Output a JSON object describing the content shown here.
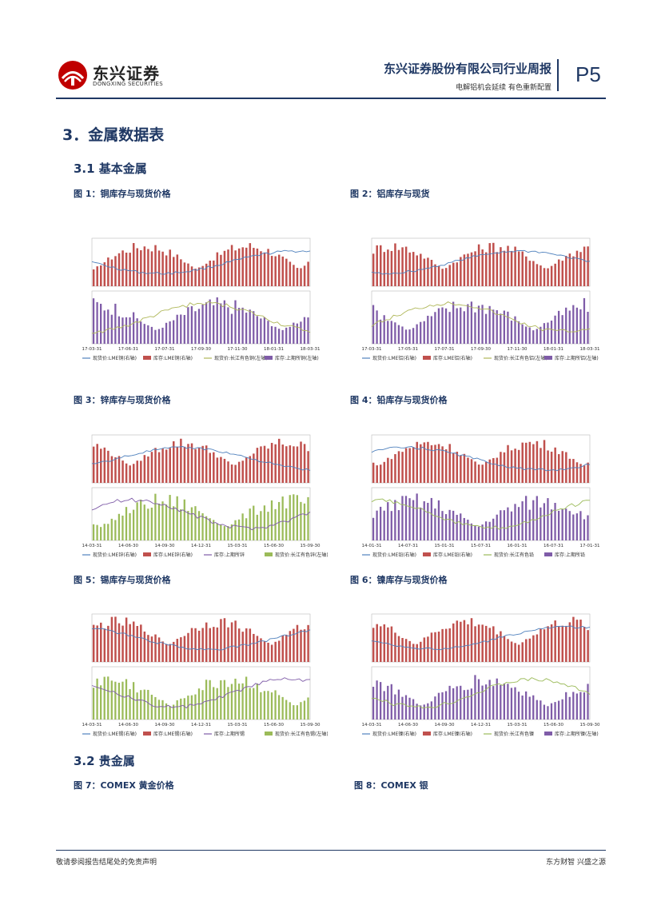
{
  "header": {
    "logo_cn": "东兴证券",
    "logo_en": "DONGXING SECURITIES",
    "report_title": "东兴证券股份有限公司行业周报",
    "report_subtitle": "电解铝机会延续 有色重新配置",
    "page": "P5"
  },
  "sections": {
    "s3": "3．金属数据表",
    "s31": "3.1  基本金属",
    "s32": "3.2  贵金属"
  },
  "figures": [
    {
      "caption": "图 1：铜库存与现货价格",
      "legend": [
        "现货价:LME铜(右轴)",
        "库存:LME铜(右轴)",
        "现货价:长江有色铜(左轴)",
        "库存:上期所铜(左轴)"
      ],
      "x_ticks": [
        "17-03-31",
        "17-06-31",
        "17-07-31",
        "17-09-30",
        "17-11-30",
        "18-01-31",
        "18-03-31"
      ]
    },
    {
      "caption": "图 2：铝库存与现货",
      "legend": [
        "现货价:LME铝(右轴)",
        "库存:LME铝(右轴)",
        "现货价:长江有色铝(左轴)",
        "库存:上期所铝(左轴)"
      ],
      "x_ticks": [
        "17-03-31",
        "17-05-31",
        "17-07-31",
        "17-09-30",
        "17-11-30",
        "18-01-31",
        "18-03-31"
      ]
    },
    {
      "caption": "图 3：锌库存与现货价格",
      "legend": [
        "现货价:LME锌(右轴)",
        "库存:LME锌(右轴)",
        "库存:上期所锌",
        "现货价:长江有色锌(左轴)"
      ],
      "x_ticks": [
        "14-03-31",
        "14-06-30",
        "14-09-30",
        "14-12-31",
        "15-03-31",
        "15-06-30",
        "15-09-30"
      ]
    },
    {
      "caption": "图 4：铅库存与现货价格",
      "legend": [
        "现货价:LME铅(右轴)",
        "库存:LME铅(右轴)",
        "现货价:长江有色铅",
        "库存:上期所铅"
      ],
      "x_ticks": [
        "14-01-31",
        "14-07-31",
        "15-01-31",
        "15-07-31",
        "16-01-31",
        "16-07-31",
        "17-01-31"
      ]
    },
    {
      "caption": "图 5：锡库存与现货价格",
      "legend": [
        "现货价:LME锡(右轴)",
        "库存:LME锡(右轴)",
        "库存:上期所锡",
        "现货价:长江有色锡(左轴)"
      ],
      "x_ticks": [
        "14-03-31",
        "14-06-30",
        "14-09-30",
        "14-12-31",
        "15-03-31",
        "15-06-30",
        "15-09-30"
      ]
    },
    {
      "caption": "图 6：镍库存与现货价格",
      "legend": [
        "现货价:LME镍(右轴)",
        "库存:LME镍(右轴)",
        "现货价:长江有色镍",
        "库存:上期所镍(左轴)"
      ],
      "x_ticks": [
        "14-03-31",
        "14-06-30",
        "14-09-30",
        "14-12-31",
        "15-03-31",
        "15-06-30",
        "15-09-30"
      ]
    },
    {
      "caption": "图 7：COMEX 黄金价格"
    },
    {
      "caption": "图 8：COMEX 银"
    }
  ],
  "footer": {
    "left": "敬请参阅报告结尾处的免责声明",
    "right": "东方财智 兴盛之源"
  },
  "colors": {
    "brand": "#1f3864",
    "bar_red": "#c0504d",
    "bar_purple": "#7f5ca8",
    "bar_green": "#9bbb59",
    "line_blue": "#4f81bd",
    "line_olive": "#b0b85a"
  }
}
